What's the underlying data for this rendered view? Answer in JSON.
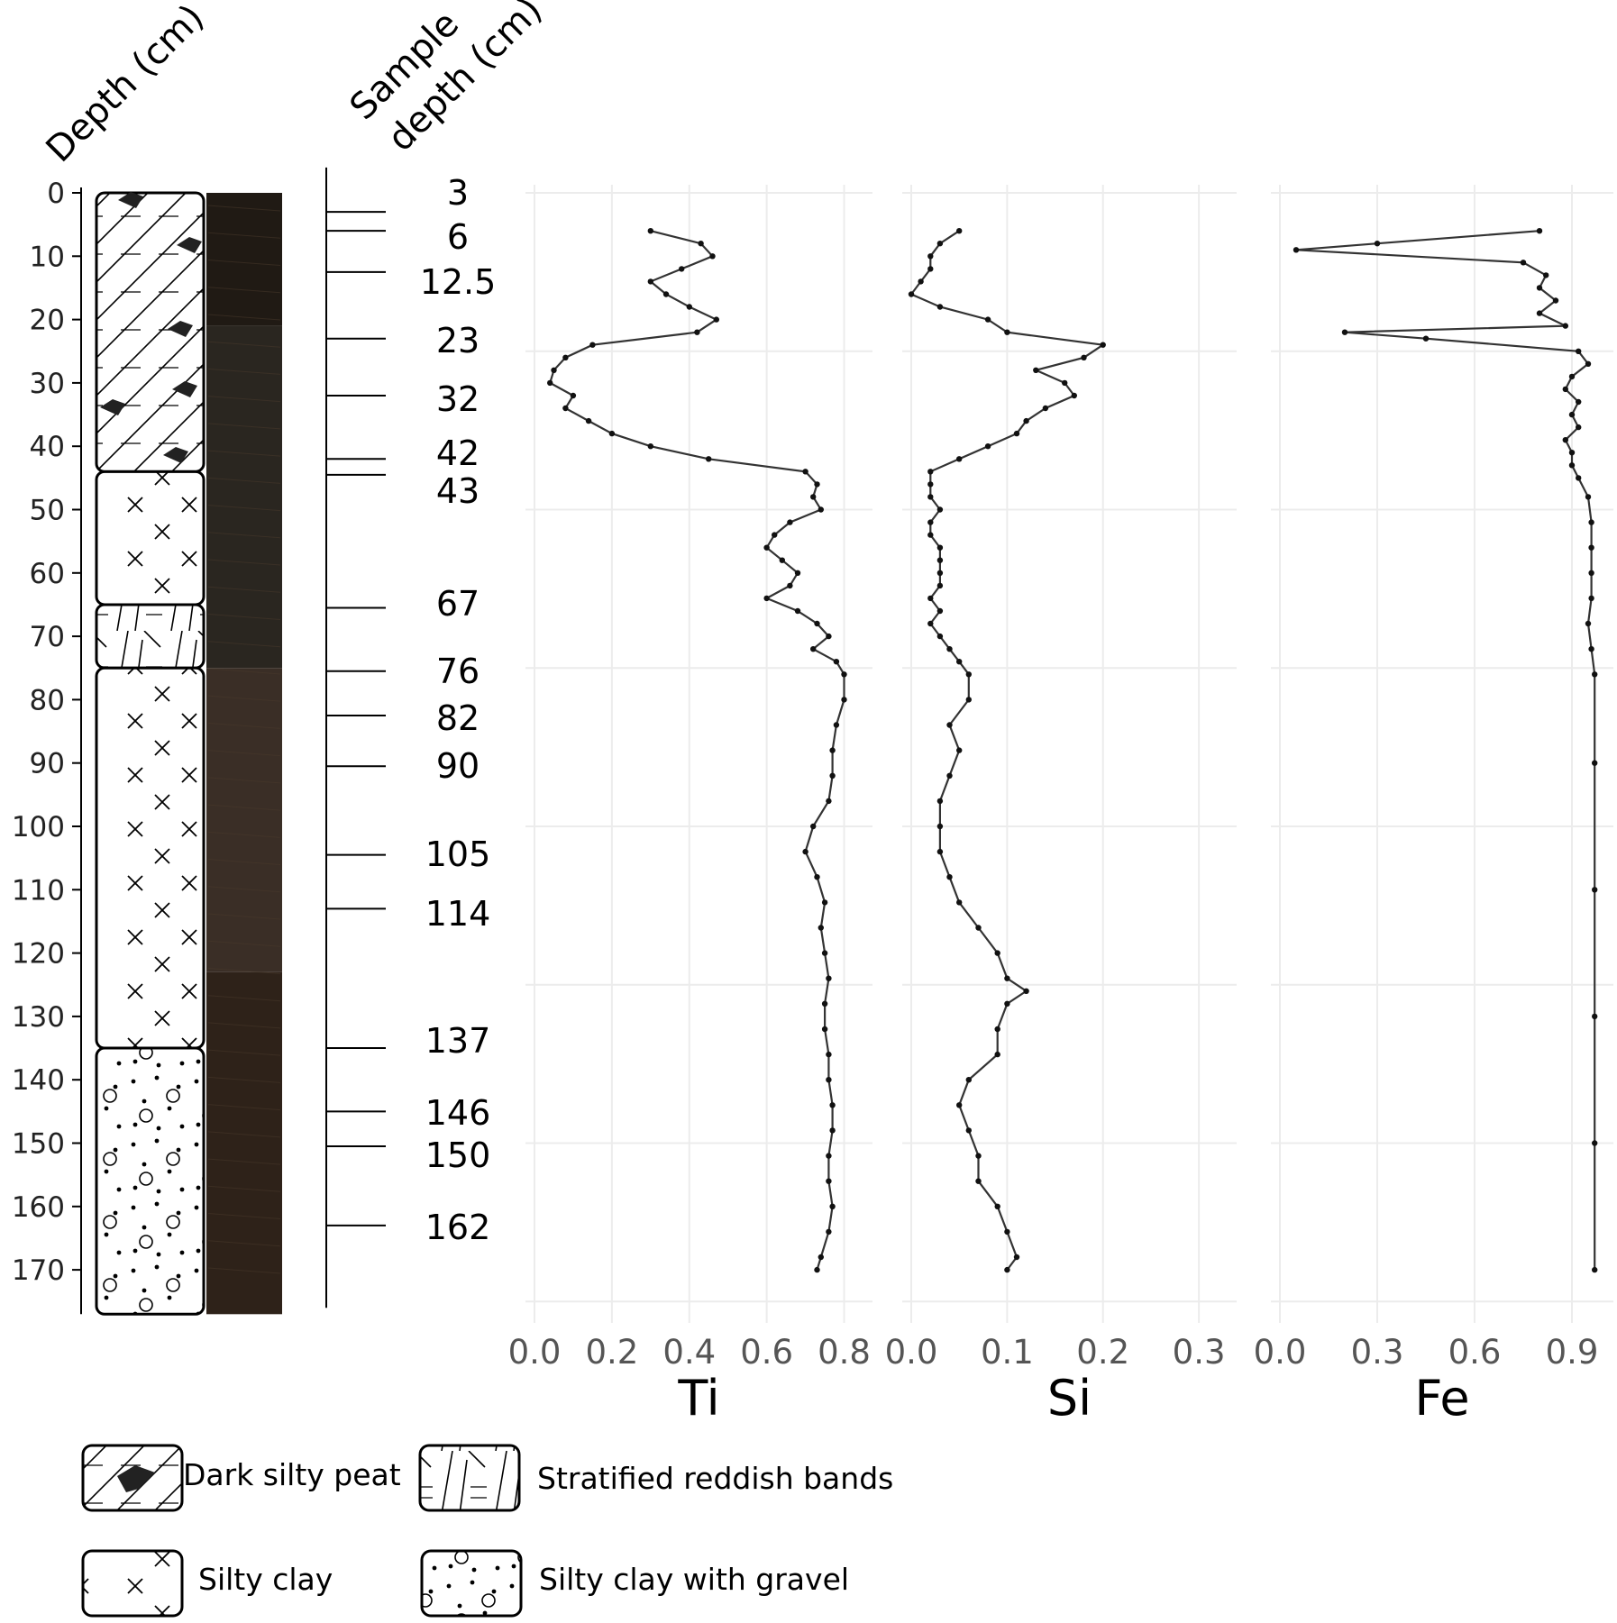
{
  "header": {
    "depth_label": "Depth (cm)",
    "sample_label_line1": "Sample",
    "sample_label_line2": "depth (cm)"
  },
  "depth_axis": {
    "range": [
      0,
      175
    ],
    "ticks": [
      0,
      10,
      20,
      30,
      40,
      50,
      60,
      70,
      80,
      90,
      100,
      110,
      120,
      130,
      140,
      150,
      160,
      170
    ]
  },
  "lithology": [
    {
      "type": "peat",
      "top": 0,
      "bottom": 44
    },
    {
      "type": "clay",
      "top": 44,
      "bottom": 65
    },
    {
      "type": "bands",
      "top": 65,
      "bottom": 75
    },
    {
      "type": "clay",
      "top": 75,
      "bottom": 135
    },
    {
      "type": "gravel",
      "top": 135,
      "bottom": 177
    }
  ],
  "core_photo": {
    "segments": [
      {
        "top": 0,
        "bottom": 21,
        "color": "#201a14"
      },
      {
        "top": 21,
        "bottom": 75,
        "color": "#2a2620"
      },
      {
        "top": 75,
        "bottom": 123,
        "color": "#3a2e26"
      },
      {
        "top": 123,
        "bottom": 177,
        "color": "#2e2219"
      }
    ]
  },
  "samples": [
    {
      "label": "3",
      "depth": 3
    },
    {
      "label": "6",
      "depth": 6
    },
    {
      "label": "12.5",
      "depth": 12.5
    },
    {
      "label": "23",
      "depth": 23
    },
    {
      "label": "32",
      "depth": 32
    },
    {
      "label": "42",
      "depth": 42
    },
    {
      "label": "43",
      "depth": 44.5
    },
    {
      "label": "67",
      "depth": 65.5
    },
    {
      "label": "76",
      "depth": 75.5
    },
    {
      "label": "82",
      "depth": 82.5
    },
    {
      "label": "90",
      "depth": 90.5
    },
    {
      "label": "105",
      "depth": 104.5
    },
    {
      "label": "114",
      "depth": 113
    },
    {
      "label": "137",
      "depth": 135
    },
    {
      "label": "146",
      "depth": 145
    },
    {
      "label": "150",
      "depth": 150.5
    },
    {
      "label": "162",
      "depth": 163
    }
  ],
  "chart_data": [
    {
      "type": "line",
      "xlabel": "Ti",
      "xlim": [
        0,
        0.85
      ],
      "xticks": [
        "0.0",
        "0.2",
        "0.4",
        "0.6",
        "0.8"
      ],
      "xtick_values": [
        0,
        0.2,
        0.4,
        0.6,
        0.8
      ],
      "grid": true,
      "points": [
        [
          6,
          0.3
        ],
        [
          8,
          0.43
        ],
        [
          10,
          0.46
        ],
        [
          12,
          0.38
        ],
        [
          14,
          0.3
        ],
        [
          16,
          0.34
        ],
        [
          18,
          0.4
        ],
        [
          20,
          0.47
        ],
        [
          22,
          0.42
        ],
        [
          24,
          0.15
        ],
        [
          26,
          0.08
        ],
        [
          28,
          0.05
        ],
        [
          30,
          0.04
        ],
        [
          32,
          0.1
        ],
        [
          34,
          0.08
        ],
        [
          36,
          0.14
        ],
        [
          38,
          0.2
        ],
        [
          40,
          0.3
        ],
        [
          42,
          0.45
        ],
        [
          44,
          0.7
        ],
        [
          46,
          0.73
        ],
        [
          48,
          0.72
        ],
        [
          50,
          0.74
        ],
        [
          52,
          0.66
        ],
        [
          54,
          0.62
        ],
        [
          56,
          0.6
        ],
        [
          58,
          0.64
        ],
        [
          60,
          0.68
        ],
        [
          62,
          0.66
        ],
        [
          64,
          0.6
        ],
        [
          66,
          0.68
        ],
        [
          68,
          0.73
        ],
        [
          70,
          0.76
        ],
        [
          72,
          0.72
        ],
        [
          74,
          0.78
        ],
        [
          76,
          0.8
        ],
        [
          80,
          0.8
        ],
        [
          84,
          0.78
        ],
        [
          88,
          0.77
        ],
        [
          92,
          0.77
        ],
        [
          96,
          0.76
        ],
        [
          100,
          0.72
        ],
        [
          104,
          0.7
        ],
        [
          108,
          0.73
        ],
        [
          112,
          0.75
        ],
        [
          116,
          0.74
        ],
        [
          120,
          0.75
        ],
        [
          124,
          0.76
        ],
        [
          128,
          0.75
        ],
        [
          132,
          0.75
        ],
        [
          136,
          0.76
        ],
        [
          140,
          0.76
        ],
        [
          144,
          0.77
        ],
        [
          148,
          0.77
        ],
        [
          152,
          0.76
        ],
        [
          156,
          0.76
        ],
        [
          160,
          0.77
        ],
        [
          164,
          0.76
        ],
        [
          168,
          0.74
        ],
        [
          170,
          0.73
        ]
      ]
    },
    {
      "type": "line",
      "xlabel": "Si",
      "xlim": [
        0,
        0.33
      ],
      "xticks": [
        "0.0",
        "0.1",
        "0.2",
        "0.3"
      ],
      "xtick_values": [
        0,
        0.1,
        0.2,
        0.3
      ],
      "grid": true,
      "points": [
        [
          6,
          0.05
        ],
        [
          8,
          0.03
        ],
        [
          10,
          0.02
        ],
        [
          12,
          0.02
        ],
        [
          14,
          0.01
        ],
        [
          16,
          0.0
        ],
        [
          18,
          0.03
        ],
        [
          20,
          0.08
        ],
        [
          22,
          0.1
        ],
        [
          24,
          0.2
        ],
        [
          26,
          0.18
        ],
        [
          28,
          0.13
        ],
        [
          30,
          0.16
        ],
        [
          32,
          0.17
        ],
        [
          34,
          0.14
        ],
        [
          36,
          0.12
        ],
        [
          38,
          0.11
        ],
        [
          40,
          0.08
        ],
        [
          42,
          0.05
        ],
        [
          44,
          0.02
        ],
        [
          46,
          0.02
        ],
        [
          48,
          0.02
        ],
        [
          50,
          0.03
        ],
        [
          52,
          0.02
        ],
        [
          54,
          0.02
        ],
        [
          56,
          0.03
        ],
        [
          58,
          0.03
        ],
        [
          60,
          0.03
        ],
        [
          62,
          0.03
        ],
        [
          64,
          0.02
        ],
        [
          66,
          0.03
        ],
        [
          68,
          0.02
        ],
        [
          70,
          0.03
        ],
        [
          72,
          0.04
        ],
        [
          74,
          0.05
        ],
        [
          76,
          0.06
        ],
        [
          80,
          0.06
        ],
        [
          84,
          0.04
        ],
        [
          88,
          0.05
        ],
        [
          92,
          0.04
        ],
        [
          96,
          0.03
        ],
        [
          100,
          0.03
        ],
        [
          104,
          0.03
        ],
        [
          108,
          0.04
        ],
        [
          112,
          0.05
        ],
        [
          116,
          0.07
        ],
        [
          120,
          0.09
        ],
        [
          124,
          0.1
        ],
        [
          126,
          0.12
        ],
        [
          128,
          0.1
        ],
        [
          132,
          0.09
        ],
        [
          136,
          0.09
        ],
        [
          140,
          0.06
        ],
        [
          144,
          0.05
        ],
        [
          148,
          0.06
        ],
        [
          152,
          0.07
        ],
        [
          156,
          0.07
        ],
        [
          160,
          0.09
        ],
        [
          164,
          0.1
        ],
        [
          168,
          0.11
        ],
        [
          170,
          0.1
        ]
      ]
    },
    {
      "type": "line",
      "xlabel": "Fe",
      "xlim": [
        0,
        1.0
      ],
      "xticks": [
        "0.0",
        "0.3",
        "0.6",
        "0.9"
      ],
      "xtick_values": [
        0,
        0.3,
        0.6,
        0.9
      ],
      "grid": true,
      "points": [
        [
          6,
          0.8
        ],
        [
          8,
          0.3
        ],
        [
          9,
          0.05
        ],
        [
          11,
          0.75
        ],
        [
          13,
          0.82
        ],
        [
          15,
          0.8
        ],
        [
          17,
          0.85
        ],
        [
          19,
          0.8
        ],
        [
          21,
          0.88
        ],
        [
          22,
          0.2
        ],
        [
          23,
          0.45
        ],
        [
          25,
          0.92
        ],
        [
          27,
          0.95
        ],
        [
          29,
          0.9
        ],
        [
          31,
          0.88
        ],
        [
          33,
          0.92
        ],
        [
          35,
          0.9
        ],
        [
          37,
          0.92
        ],
        [
          39,
          0.88
        ],
        [
          41,
          0.9
        ],
        [
          43,
          0.9
        ],
        [
          45,
          0.92
        ],
        [
          48,
          0.95
        ],
        [
          52,
          0.96
        ],
        [
          56,
          0.96
        ],
        [
          60,
          0.96
        ],
        [
          64,
          0.96
        ],
        [
          68,
          0.95
        ],
        [
          72,
          0.96
        ],
        [
          76,
          0.97
        ],
        [
          90,
          0.97
        ],
        [
          110,
          0.97
        ],
        [
          130,
          0.97
        ],
        [
          150,
          0.97
        ],
        [
          170,
          0.97
        ]
      ]
    }
  ],
  "legend": [
    {
      "label": "Dark silty peat",
      "type": "peat"
    },
    {
      "label": "Stratified reddish bands",
      "type": "bands"
    },
    {
      "label": "Silty clay",
      "type": "clay"
    },
    {
      "label": "Silty clay with gravel",
      "type": "gravel"
    }
  ]
}
